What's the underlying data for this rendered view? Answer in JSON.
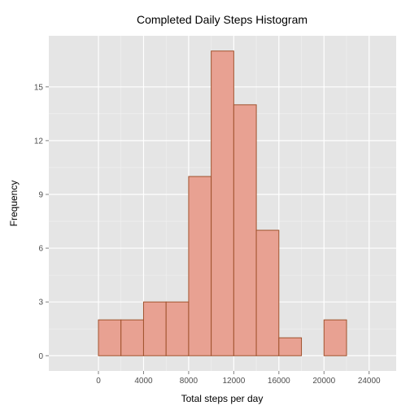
{
  "chart_data": {
    "type": "bar",
    "title": "Completed Daily Steps Histogram",
    "xlabel": "Total steps per day",
    "ylabel": "Frequency",
    "xlim": [
      -4400,
      26400
    ],
    "ylim": [
      -0.85,
      17.85
    ],
    "x_ticks": [
      0,
      4000,
      8000,
      12000,
      16000,
      20000,
      24000
    ],
    "x_tick_labels": [
      "0",
      "4000",
      "8000",
      "12000",
      "16000",
      "20000",
      "24000"
    ],
    "y_ticks": [
      0,
      3,
      6,
      9,
      12,
      15
    ],
    "y_tick_labels": [
      "0",
      "3",
      "6",
      "9",
      "12",
      "15"
    ],
    "bin_width": 2000,
    "bins": [
      {
        "start": -2000,
        "end": 0,
        "count": 0
      },
      {
        "start": 0,
        "end": 2000,
        "count": 2
      },
      {
        "start": 2000,
        "end": 4000,
        "count": 2
      },
      {
        "start": 4000,
        "end": 6000,
        "count": 3
      },
      {
        "start": 6000,
        "end": 8000,
        "count": 3
      },
      {
        "start": 8000,
        "end": 10000,
        "count": 10
      },
      {
        "start": 10000,
        "end": 12000,
        "count": 17
      },
      {
        "start": 12000,
        "end": 14000,
        "count": 14
      },
      {
        "start": 14000,
        "end": 16000,
        "count": 7
      },
      {
        "start": 16000,
        "end": 18000,
        "count": 1
      },
      {
        "start": 18000,
        "end": 20000,
        "count": 0
      },
      {
        "start": 20000,
        "end": 22000,
        "count": 2
      },
      {
        "start": 22000,
        "end": 24000,
        "count": 0
      }
    ],
    "grid": true,
    "legend": "none",
    "colors": {
      "panel_background": "#e5e5e5",
      "grid_major": "#ffffff",
      "grid_minor": "#f2f2f2",
      "bar_fill": "#e8a192",
      "bar_outline": "#a0522d",
      "tick_mark": "#7f7f7f"
    }
  }
}
